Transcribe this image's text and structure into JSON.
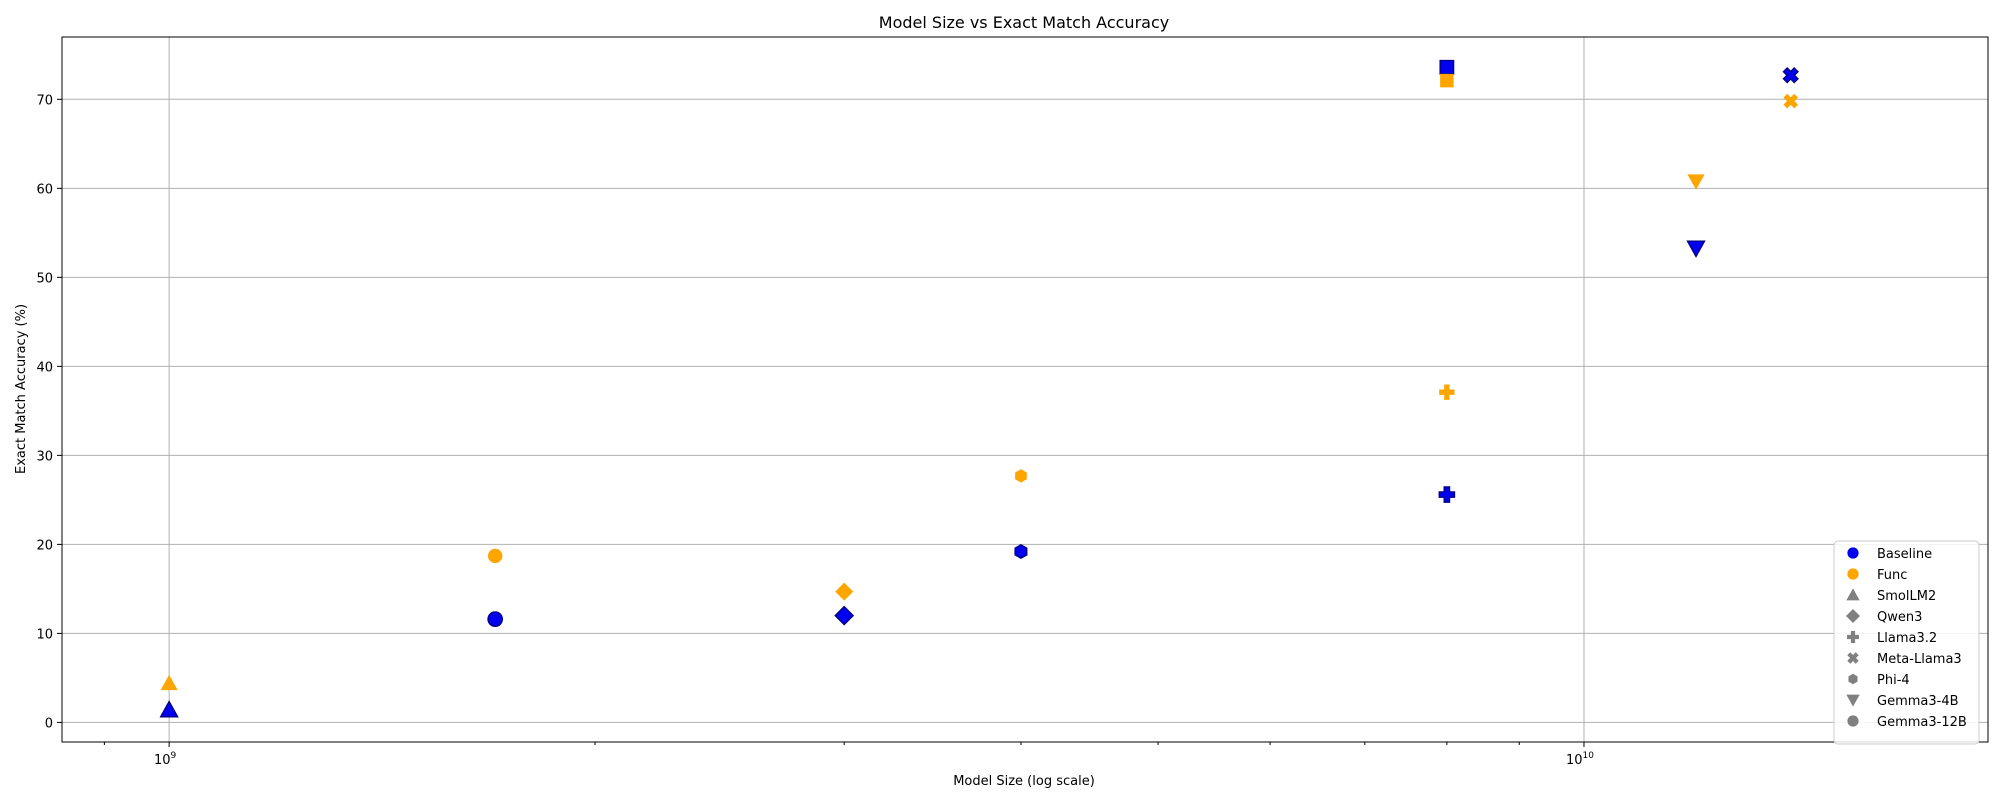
{
  "chart_data": {
    "type": "scatter",
    "title": "Model Size vs Exact Match Accuracy",
    "xlabel": "Model Size (log scale)",
    "ylabel": "Exact Match Accuracy (%)",
    "x_scale": "log",
    "xlim": [
      840000000.0,
      19300000000.0
    ],
    "ylim": [
      -2.2,
      77
    ],
    "x_ticks": [
      {
        "base": "10",
        "exp": "9",
        "value": 1000000000.0
      },
      {
        "base": "10",
        "exp": "10",
        "value": 10000000000.0
      }
    ],
    "y_ticks": [
      0,
      10,
      20,
      30,
      40,
      50,
      60,
      70
    ],
    "grid": true,
    "legend_position": "lower-right",
    "colors": {
      "Baseline": "#0000ee",
      "Func": "#ffa500",
      "legend_marker": "#808080",
      "edge": "#000080"
    },
    "legend": {
      "colors": [
        {
          "label": "Baseline",
          "color": "#0000ee"
        },
        {
          "label": "Func",
          "color": "#ffa500"
        }
      ],
      "markers": [
        {
          "label": "SmolLM2",
          "marker": "triangle-up"
        },
        {
          "label": "Qwen3",
          "marker": "diamond"
        },
        {
          "label": "Llama3.2",
          "marker": "plus"
        },
        {
          "label": "Meta-Llama3",
          "marker": "x"
        },
        {
          "label": "Phi-4",
          "marker": "hexagon"
        },
        {
          "label": "Gemma3-4B",
          "marker": "triangle-down"
        },
        {
          "label": "Gemma3-12B",
          "marker": "circle"
        }
      ]
    },
    "series": [
      {
        "name": "Baseline",
        "points": [
          {
            "model": "SmolLM2",
            "marker": "triangle-up",
            "x": 1000000000.0,
            "y": 1.4
          },
          {
            "model": "Gemma3-12B",
            "marker": "circle",
            "x": 1700000000.0,
            "y": 11.6
          },
          {
            "model": "Qwen3",
            "marker": "diamond",
            "x": 3000000000.0,
            "y": 12.0
          },
          {
            "model": "Phi-4",
            "marker": "hexagon",
            "x": 4000000000.0,
            "y": 19.2
          },
          {
            "model": "Llama3.2",
            "marker": "plus",
            "x": 8000000000.0,
            "y": 25.6
          },
          {
            "model": "Meta-Llama3",
            "marker": "square",
            "x": 8000000000.0,
            "y": 73.6
          },
          {
            "model": "Gemma3-4B",
            "marker": "triangle-down",
            "x": 12000000000.0,
            "y": 53.3
          },
          {
            "model": "Meta-Llama3",
            "marker": "x",
            "x": 14000000000.0,
            "y": 72.7
          }
        ]
      },
      {
        "name": "Func",
        "points": [
          {
            "model": "SmolLM2",
            "marker": "triangle-up",
            "x": 1000000000.0,
            "y": 4.4
          },
          {
            "model": "Gemma3-12B",
            "marker": "circle",
            "x": 1700000000.0,
            "y": 18.7
          },
          {
            "model": "Qwen3",
            "marker": "diamond",
            "x": 3000000000.0,
            "y": 14.7
          },
          {
            "model": "Phi-4",
            "marker": "hexagon",
            "x": 4000000000.0,
            "y": 27.7
          },
          {
            "model": "Llama3.2",
            "marker": "plus",
            "x": 8000000000.0,
            "y": 37.1
          },
          {
            "model": "Meta-Llama3",
            "marker": "square",
            "x": 8000000000.0,
            "y": 72.1
          },
          {
            "model": "Gemma3-4B",
            "marker": "triangle-down",
            "x": 12000000000.0,
            "y": 60.8
          },
          {
            "model": "Meta-Llama3",
            "marker": "x",
            "x": 14000000000.0,
            "y": 69.8
          }
        ]
      }
    ]
  }
}
